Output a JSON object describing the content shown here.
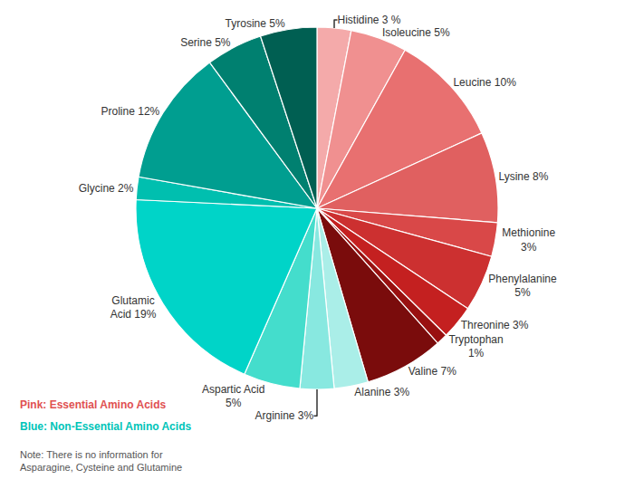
{
  "chart_data": {
    "type": "pie",
    "categories": [
      "Histidine 3 %",
      "Isoleucine 5%",
      "Leucine 10%",
      "Lysine 8%",
      "Methionine\n3%",
      "Phenylalanine\n5%",
      "Threonine 3%",
      "Tryptophan\n1%",
      "Valine 7%",
      "Alanine 3%",
      "Arginine 3%",
      "Aspartic Acid\n5%",
      "Glutamic\nAcid 19%",
      "Glycine 2%",
      "Proline 12%",
      "Serine 5%",
      "Tyrosine 5%"
    ],
    "values": [
      3,
      5,
      10,
      8,
      3,
      5,
      3,
      1,
      7,
      3,
      3,
      5,
      19,
      2,
      12,
      5,
      5
    ],
    "colors": [
      "#F4AAAA",
      "#F09090",
      "#E87070",
      "#E06060",
      "#D94848",
      "#CC3030",
      "#C42020",
      "#991010",
      "#7A0C0C",
      "#AAEEE8",
      "#88E8E0",
      "#44DDCC",
      "#00D4C8",
      "#00BFAF",
      "#009E90",
      "#008070",
      "#005F52"
    ],
    "annotations": [
      {
        "text": "Pink: Essential Amino Acids",
        "color": "#E05050"
      },
      {
        "text": "Blue: Non-Essential Amino Acids",
        "color": "#00C4B8"
      },
      {
        "text": "Note: There is no information for\nAsparagine, Cysteine and Glutamine"
      }
    ]
  }
}
